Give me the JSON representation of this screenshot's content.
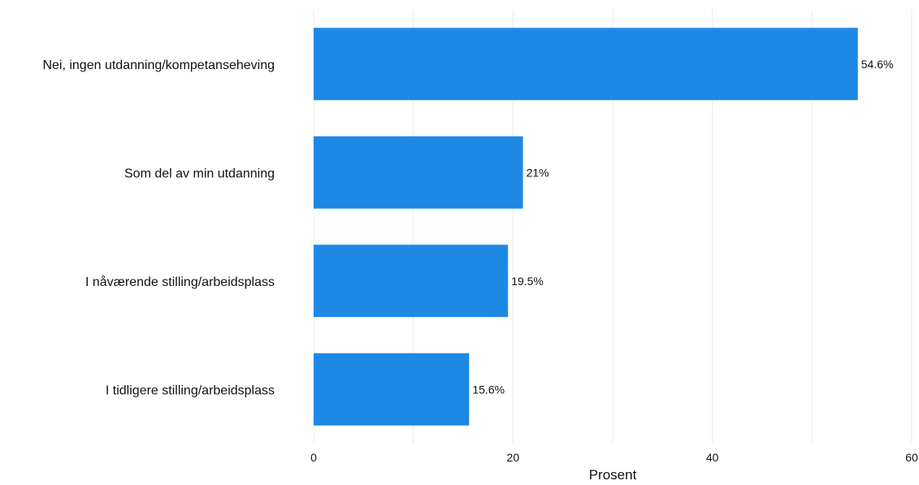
{
  "chart_data": {
    "type": "bar",
    "orientation": "horizontal",
    "categories": [
      "Nei, ingen utdanning/kompetanseheving",
      "Som del av min utdanning",
      "I nåværende stilling/arbeidsplass",
      "I tidligere stilling/arbeidsplass"
    ],
    "values": [
      54.6,
      21,
      19.5,
      15.6
    ],
    "value_labels": [
      "54.6%",
      "21%",
      "19.5%",
      "15.6%"
    ],
    "xlabel": "Prosent",
    "ylabel": "",
    "xlim": [
      0,
      60
    ],
    "xticks": [
      0,
      20,
      40,
      60
    ],
    "xtick_labels": [
      "0",
      "20",
      "40",
      "60"
    ],
    "grid": "vertical",
    "bar_color": "#1e88e5",
    "grid_color": "#ebebeb"
  }
}
